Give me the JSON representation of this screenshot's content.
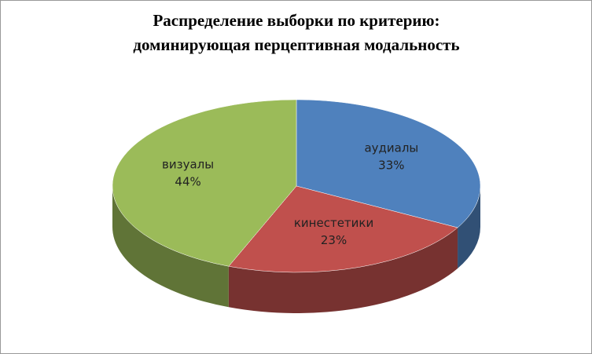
{
  "chart_data": {
    "type": "pie",
    "title": [
      "Распределение выборки по критерию:",
      "доминирующая перцептивная модальность"
    ],
    "categories": [
      "аудиалы",
      "кинестетики",
      "визуалы"
    ],
    "values": [
      33,
      23,
      44
    ],
    "value_labels": [
      "33%",
      "23%",
      "44%"
    ],
    "colors": [
      "#4f81bd",
      "#c0504d",
      "#9bbb59"
    ]
  }
}
